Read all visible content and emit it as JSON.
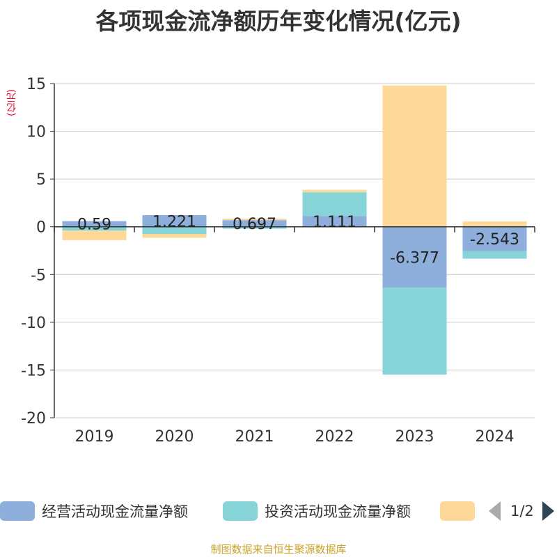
{
  "title": "各项现金流净额历年变化情况(亿元)",
  "unit_label": "(亿元)",
  "footer": "制图数据来自恒生聚源数据库",
  "legend": {
    "items": [
      {
        "label": "经营活动现金流量净额",
        "color": "#8eaedb"
      },
      {
        "label": "投资活动现金流量净额",
        "color": "#86d4d8"
      },
      {
        "label": "",
        "color": "#fdd899"
      }
    ],
    "page": "1/2"
  },
  "chart_data": {
    "type": "bar",
    "stacked": true,
    "categories": [
      "2019",
      "2020",
      "2021",
      "2022",
      "2023",
      "2024"
    ],
    "ylim": [
      -20,
      15
    ],
    "yticks": [
      15,
      10,
      5,
      0,
      -5,
      -10,
      -15,
      -20
    ],
    "grid": true,
    "legend_position": "bottom",
    "series": [
      {
        "name": "经营活动现金流量净额",
        "color": "#8eaedb",
        "values": [
          0.59,
          1.221,
          0.697,
          1.111,
          -6.377,
          -2.543
        ],
        "labels": [
          "0.59",
          "1.221",
          "0.697",
          "1.111",
          "-6.377",
          "-2.543"
        ]
      },
      {
        "name": "投资活动现金流量净额",
        "color": "#86d4d8",
        "values": [
          -0.4,
          -0.75,
          -0.2,
          2.5,
          -9.1,
          -0.8
        ]
      },
      {
        "color": "#fdd899",
        "values": [
          -1.0,
          -0.4,
          0.15,
          0.25,
          14.8,
          0.55
        ]
      }
    ]
  }
}
